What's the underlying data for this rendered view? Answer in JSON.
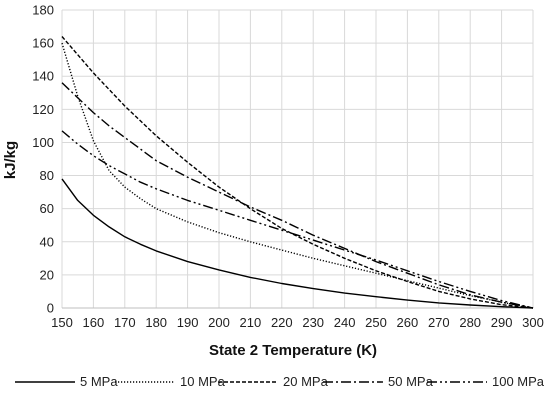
{
  "chart_data": {
    "type": "line",
    "xlabel": "State 2 Temperature (K)",
    "ylabel": "kJ/kg",
    "xlim": [
      150,
      300
    ],
    "ylim": [
      0,
      180
    ],
    "x_ticks": [
      150,
      160,
      170,
      180,
      190,
      200,
      210,
      220,
      230,
      240,
      250,
      260,
      270,
      280,
      290,
      300
    ],
    "y_ticks": [
      0,
      20,
      40,
      60,
      80,
      100,
      120,
      140,
      160,
      180
    ],
    "grid": true,
    "legend_position": "bottom",
    "x": [
      150,
      155,
      160,
      165,
      170,
      175,
      180,
      190,
      200,
      210,
      220,
      230,
      240,
      250,
      260,
      270,
      280,
      290,
      300
    ],
    "series": [
      {
        "name": "5 MPa",
        "dash": "solid",
        "values": [
          78,
          65,
          56,
          49,
          43,
          38.5,
          34.5,
          28,
          23,
          18.5,
          14.8,
          11.7,
          9,
          6.8,
          4.8,
          3.1,
          1.8,
          0.8,
          0
        ]
      },
      {
        "name": "10 MPa",
        "dash": "dot",
        "values": [
          160,
          128,
          101,
          83,
          73,
          66,
          60,
          52,
          45.5,
          40,
          35,
          30,
          25.5,
          21,
          16.5,
          12,
          7.5,
          3.5,
          0
        ]
      },
      {
        "name": "20 MPa",
        "dash": "dash",
        "values": [
          164,
          153,
          142,
          132,
          122,
          113,
          104,
          88,
          73,
          60,
          48,
          38.5,
          30,
          22.5,
          16,
          10,
          5.5,
          2,
          0
        ]
      },
      {
        "name": "50 MPa",
        "dash": "dashdot",
        "values": [
          136,
          127,
          118,
          110,
          103,
          96,
          89,
          79,
          70,
          61,
          53,
          44,
          36,
          28,
          21,
          14,
          8,
          3.5,
          0
        ]
      },
      {
        "name": "100 MPa",
        "dash": "dashdotdot",
        "values": [
          107,
          99,
          92,
          86,
          81,
          76,
          72,
          65,
          59,
          53,
          47,
          41,
          35,
          29,
          22.5,
          16,
          10,
          4.5,
          0
        ]
      }
    ]
  }
}
